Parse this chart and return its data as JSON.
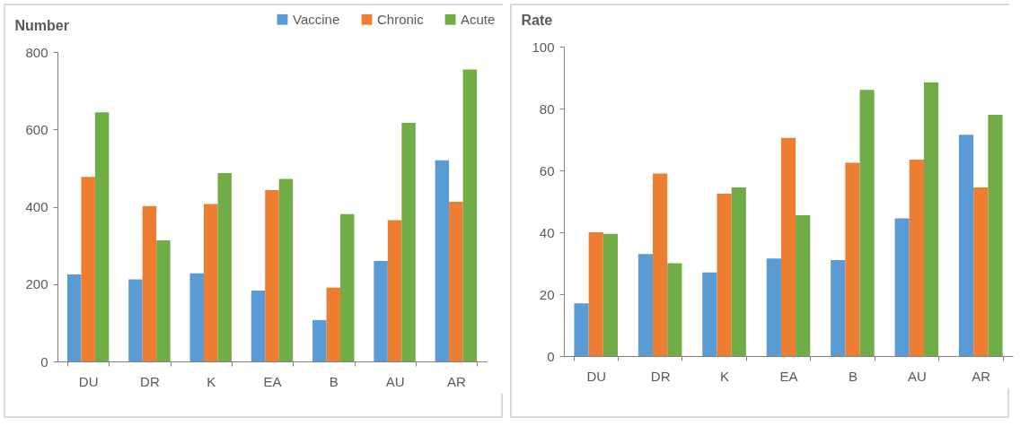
{
  "chart_data": [
    {
      "type": "bar",
      "ylabel": "Number",
      "categories": [
        "DU",
        "DR",
        "K",
        "EA",
        "B",
        "AU",
        "AR"
      ],
      "series": [
        {
          "name": "Vaccine",
          "color": "#5b9bd5",
          "values": [
            225,
            212,
            228,
            183,
            107,
            260,
            520
          ]
        },
        {
          "name": "Chronic",
          "color": "#ed7d31",
          "values": [
            477,
            402,
            407,
            443,
            191,
            365,
            413
          ]
        },
        {
          "name": "Acute",
          "color": "#70ad47",
          "values": [
            644,
            313,
            487,
            472,
            381,
            617,
            755
          ]
        }
      ],
      "ylim": [
        0,
        800
      ],
      "yticks": [
        0,
        200,
        400,
        600,
        800
      ],
      "legend": "top right"
    },
    {
      "type": "bar",
      "ylabel": "Rate",
      "categories": [
        "DU",
        "DR",
        "K",
        "EA",
        "B",
        "AU",
        "AR"
      ],
      "series": [
        {
          "color": "#5b9bd5",
          "values": [
            17,
            33,
            27,
            31.5,
            31,
            44.5,
            71.5
          ]
        },
        {
          "color": "#ed7d31",
          "values": [
            40,
            59,
            52.5,
            70.5,
            62.5,
            63.5,
            54.5
          ]
        },
        {
          "color": "#70ad47",
          "values": [
            39.5,
            30,
            54.5,
            45.5,
            86,
            88.5,
            78
          ]
        }
      ],
      "ylim": [
        0,
        100
      ],
      "yticks": [
        0,
        20,
        40,
        60,
        80,
        100
      ],
      "legend": false
    }
  ]
}
